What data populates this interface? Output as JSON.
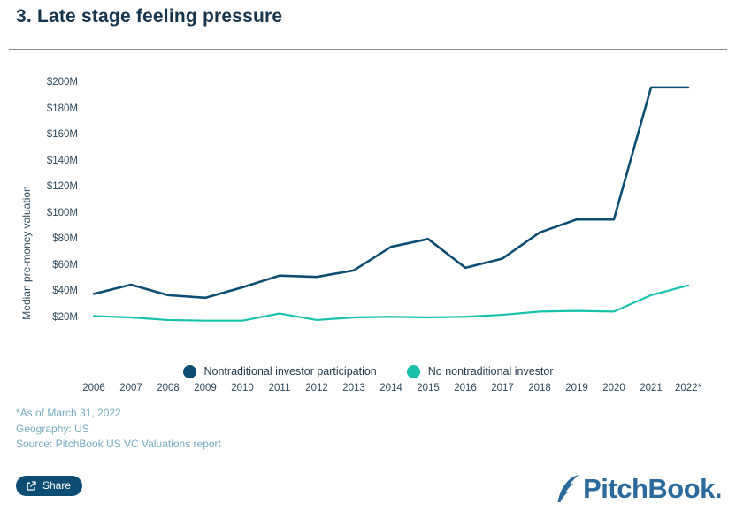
{
  "page": {
    "title": "3. Late stage feeling pressure"
  },
  "chart_data": {
    "type": "line",
    "title": "3. Late stage feeling pressure",
    "xlabel": "",
    "ylabel": "Median pre-money valuation",
    "grid": false,
    "legend_position": "bottom",
    "categories": [
      "2006",
      "2007",
      "2008",
      "2009",
      "2010",
      "2011",
      "2012",
      "2013",
      "2014",
      "2015",
      "2016",
      "2017",
      "2018",
      "2019",
      "2020",
      "2021",
      "2022*"
    ],
    "y_ticks": [
      {
        "label": "$200M",
        "value": 200
      },
      {
        "label": "$180M",
        "value": 180
      },
      {
        "label": "$160M",
        "value": 160
      },
      {
        "label": "$140M",
        "value": 140
      },
      {
        "label": "$120M",
        "value": 120
      },
      {
        "label": "$100M",
        "value": 100
      },
      {
        "label": "$80M",
        "value": 80
      },
      {
        "label": "$60M",
        "value": 60
      },
      {
        "label": "$40M",
        "value": 40
      },
      {
        "label": "$20M",
        "value": 20
      }
    ],
    "ylim": [
      15,
      205
    ],
    "units": "USD millions",
    "series": [
      {
        "name": "Nontraditional investor participation",
        "color": "#0e4d73",
        "stroke_width": 2.6,
        "values": [
          38,
          45,
          37,
          35,
          43,
          52,
          51,
          56,
          74,
          80,
          58,
          65,
          85,
          95,
          95,
          196,
          196
        ]
      },
      {
        "name": "No nontraditional investor",
        "color": "#16c2ac",
        "stroke_width": 2.2,
        "values": [
          21,
          20,
          18,
          17.5,
          17.5,
          23,
          18,
          20,
          20.5,
          20,
          20.5,
          22,
          24.5,
          25,
          24.5,
          37,
          44.5
        ]
      }
    ]
  },
  "footnotes": {
    "line1": "*As of March 31, 2022",
    "line2": "Geography: US",
    "line3": "Source: PitchBook US VC Valuations report"
  },
  "share": {
    "label": "Share"
  },
  "logo": {
    "text": "PitchBook."
  },
  "colors": {
    "title": "#17364e",
    "axis_text": "#2e4759",
    "footnote": "#74abc0",
    "divider": "#8b8b8b",
    "share_bg": "#0e4d73",
    "logo": "#2b6a9d"
  }
}
